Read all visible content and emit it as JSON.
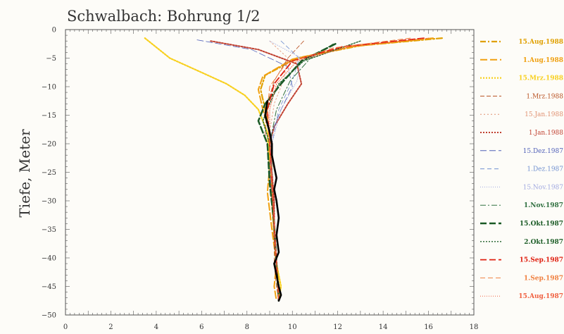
{
  "chart_data": {
    "type": "line",
    "title": "Schwalbach: Bohrung 1/2",
    "xlabel": "",
    "ylabel": "Tiefe, Meter",
    "xlim": [
      0,
      18
    ],
    "ylim": [
      -50,
      0
    ],
    "xticks": [
      "0",
      "2",
      "4",
      "6",
      "8",
      "10",
      "12",
      "14",
      "16",
      "18"
    ],
    "yticks": [
      "0",
      "−5",
      "−10",
      "−15",
      "−20",
      "−25",
      "−30",
      "−35",
      "−40",
      "−45",
      "−50"
    ],
    "legend_position": "right",
    "series": [
      {
        "name": "15.Aug.1988",
        "color": "#e0a000",
        "dash": "8,3,2,3",
        "width": 2.2,
        "bold": true,
        "x": [
          16.6,
          13.0,
          10.2,
          8.8,
          8.6,
          8.8,
          9.0,
          9.1,
          9.1,
          9.2,
          9.3,
          9.4,
          9.4
        ],
        "y": [
          -1.5,
          -2.8,
          -5.0,
          -8.0,
          -10.5,
          -14.0,
          -18.0,
          -24.0,
          -30.0,
          -36.0,
          -41.0,
          -45.0,
          -47.5
        ]
      },
      {
        "name": "1.Aug.1988",
        "color": "#f0a010",
        "dash": "10,4",
        "width": 2.0,
        "bold": true,
        "x": [
          16.2,
          12.6,
          10.0,
          8.7,
          8.5,
          8.7,
          9.0,
          9.0,
          8.9,
          9.1,
          9.3,
          9.2,
          9.3
        ],
        "y": [
          -1.5,
          -3.0,
          -5.2,
          -8.2,
          -10.5,
          -14.0,
          -18.0,
          -24.0,
          -28.5,
          -35.0,
          -41.0,
          -45.0,
          -47.5
        ]
      },
      {
        "name": "15.Mrz.1988",
        "color": "#f8d020",
        "dash": "2,2",
        "width": 2.2,
        "bold": true,
        "x": [
          3.5,
          4.6,
          6.0,
          7.1,
          7.9,
          8.5,
          8.9,
          9.0,
          9.1,
          9.2,
          9.3,
          9.5,
          9.4
        ],
        "y": [
          -1.5,
          -5.0,
          -7.5,
          -9.5,
          -11.5,
          -14.0,
          -18.0,
          -24.0,
          -30.0,
          -36.0,
          -41.0,
          -45.0,
          -47.5
        ]
      },
      {
        "name": "1.Mrz.1988",
        "color": "#b85020",
        "dash": "6,3",
        "width": 0.8,
        "bold": false,
        "x": [
          10.5,
          9.8,
          9.2,
          8.9,
          8.8,
          9.0,
          9.1,
          9.2,
          9.2,
          9.3,
          9.4
        ],
        "y": [
          -2.0,
          -5.0,
          -9.0,
          -13.0,
          -18.0,
          -24.0,
          -30.0,
          -36.0,
          -41.0,
          -45.0,
          -47.5
        ]
      },
      {
        "name": "15.Jan.1988",
        "color": "#e09070",
        "dash": "2,3",
        "width": 0.8,
        "bold": false,
        "x": [
          9.0,
          9.8,
          9.6,
          9.2,
          9.0,
          9.1,
          9.2,
          9.2,
          9.3,
          9.4
        ],
        "y": [
          -2.0,
          -5.0,
          -9.0,
          -13.0,
          -18.0,
          -24.0,
          -30.0,
          -36.0,
          -41.0,
          -47.5
        ]
      },
      {
        "name": "1.Jan.1988",
        "color": "#c04030",
        "dash": "2,2",
        "width": 2.0,
        "bold": false,
        "x": [
          6.4,
          8.5,
          10.2,
          10.4,
          9.8,
          9.2,
          9.0,
          9.1,
          9.2,
          9.2,
          9.3,
          9.4
        ],
        "y": [
          -2.0,
          -3.5,
          -6.0,
          -9.5,
          -13.0,
          -17.0,
          -20.0,
          -25.0,
          -30.0,
          -36.0,
          -41.0,
          -47.5
        ]
      },
      {
        "name": "15.Dez.1987",
        "color": "#5060b8",
        "dash": "9,4",
        "width": 0.8,
        "bold": false,
        "x": [
          5.8,
          8.2,
          9.8,
          10.0,
          9.5,
          9.1,
          9.0,
          9.1,
          9.2,
          9.3,
          9.4
        ],
        "y": [
          -1.8,
          -3.5,
          -6.5,
          -10.0,
          -14.0,
          -18.0,
          -24.0,
          -30.0,
          -36.0,
          -41.0,
          -47.5
        ]
      },
      {
        "name": "1.Dez.1987",
        "color": "#7090d0",
        "dash": "6,4",
        "width": 0.8,
        "bold": false,
        "x": [
          9.5,
          10.3,
          10.0,
          9.4,
          9.1,
          9.1,
          9.2,
          9.3,
          9.4
        ],
        "y": [
          -2.0,
          -5.0,
          -9.0,
          -14.0,
          -20.0,
          -27.0,
          -34.0,
          -41.0,
          -47.5
        ]
      },
      {
        "name": "15.Nov.1987",
        "color": "#a0a8e0",
        "dash": "1,2",
        "width": 0.8,
        "bold": false,
        "x": [
          9.0,
          10.4,
          10.2,
          9.5,
          9.1,
          9.1,
          9.2,
          9.3,
          9.4
        ],
        "y": [
          -2.0,
          -5.0,
          -9.0,
          -14.0,
          -20.0,
          -27.0,
          -34.0,
          -41.0,
          -47.5
        ]
      },
      {
        "name": "1.Nov.1987",
        "color": "#307040",
        "dash": "8,3,2,3",
        "width": 1.0,
        "bold": true,
        "x": [
          11.8,
          10.8,
          9.9,
          9.3,
          9.0,
          9.1,
          9.2,
          9.3,
          9.4
        ],
        "y": [
          -2.5,
          -5.0,
          -9.0,
          -14.0,
          -20.0,
          -27.0,
          -34.0,
          -41.0,
          -47.5
        ]
      },
      {
        "name": "15.Okt.1987",
        "color": "#1a5a25",
        "dash": "9,4",
        "width": 2.5,
        "bold": true,
        "x": [
          11.9,
          10.4,
          9.5,
          8.8,
          8.5,
          8.9,
          9.0,
          9.2,
          9.3,
          9.4
        ],
        "y": [
          -2.5,
          -5.5,
          -9.5,
          -13.0,
          -16.0,
          -20.0,
          -27.0,
          -34.0,
          -41.0,
          -47.5
        ]
      },
      {
        "name": "2.Okt.1987",
        "color": "#20602a",
        "dash": "2,2",
        "width": 1.4,
        "bold": true,
        "x": [
          13.0,
          10.5,
          9.4,
          9.0,
          8.7,
          9.0,
          9.1,
          9.2,
          9.3,
          9.4
        ],
        "y": [
          -2.0,
          -5.5,
          -9.5,
          -13.0,
          -16.0,
          -20.0,
          -27.0,
          -34.0,
          -41.0,
          -47.5
        ]
      },
      {
        "name": "15.Sep.1987",
        "color": "#e02010",
        "dash": "9,4",
        "width": 1.8,
        "bold": true,
        "x": [
          15.8,
          12.2,
          10.0,
          9.2,
          8.9,
          9.0,
          9.1,
          9.2,
          9.3,
          9.4
        ],
        "y": [
          -1.5,
          -3.0,
          -5.5,
          -9.5,
          -14.0,
          -20.0,
          -27.0,
          -34.0,
          -41.0,
          -47.5
        ]
      },
      {
        "name": "1.Sep.1987",
        "color": "#f08040",
        "dash": "7,4",
        "width": 1.0,
        "bold": true,
        "x": [
          15.2,
          11.8,
          9.7,
          9.0,
          8.9,
          9.0,
          9.1,
          9.2,
          9.3,
          9.4
        ],
        "y": [
          -1.5,
          -3.2,
          -6.0,
          -10.0,
          -14.0,
          -20.0,
          -27.0,
          -34.0,
          -41.0,
          -47.5
        ]
      },
      {
        "name": "15.Aug.1987",
        "color": "#f06040",
        "dash": "1,2",
        "width": 1.0,
        "bold": true,
        "x": [
          16.0,
          12.5,
          10.2,
          9.3,
          9.0,
          9.0,
          9.1,
          9.2,
          9.3,
          9.4
        ],
        "y": [
          -1.5,
          -3.0,
          -5.5,
          -9.5,
          -14.0,
          -20.0,
          -27.0,
          -34.0,
          -41.0,
          -47.5
        ]
      },
      {
        "name": "",
        "color": "#000000",
        "dash": "",
        "width": 2.6,
        "bold": false,
        "x": [
          8.9,
          8.8,
          9.0,
          9.1,
          9.1,
          9.2,
          9.3,
          9.2,
          9.3,
          9.4,
          9.3,
          9.4,
          9.2,
          9.3,
          9.4,
          9.5,
          9.4
        ],
        "y": [
          -12.5,
          -15.0,
          -18.0,
          -20.0,
          -22.0,
          -24.0,
          -26.0,
          -28.0,
          -30.0,
          -33.0,
          -36.0,
          -39.0,
          -41.0,
          -43.0,
          -45.0,
          -46.5,
          -47.5
        ]
      }
    ]
  }
}
